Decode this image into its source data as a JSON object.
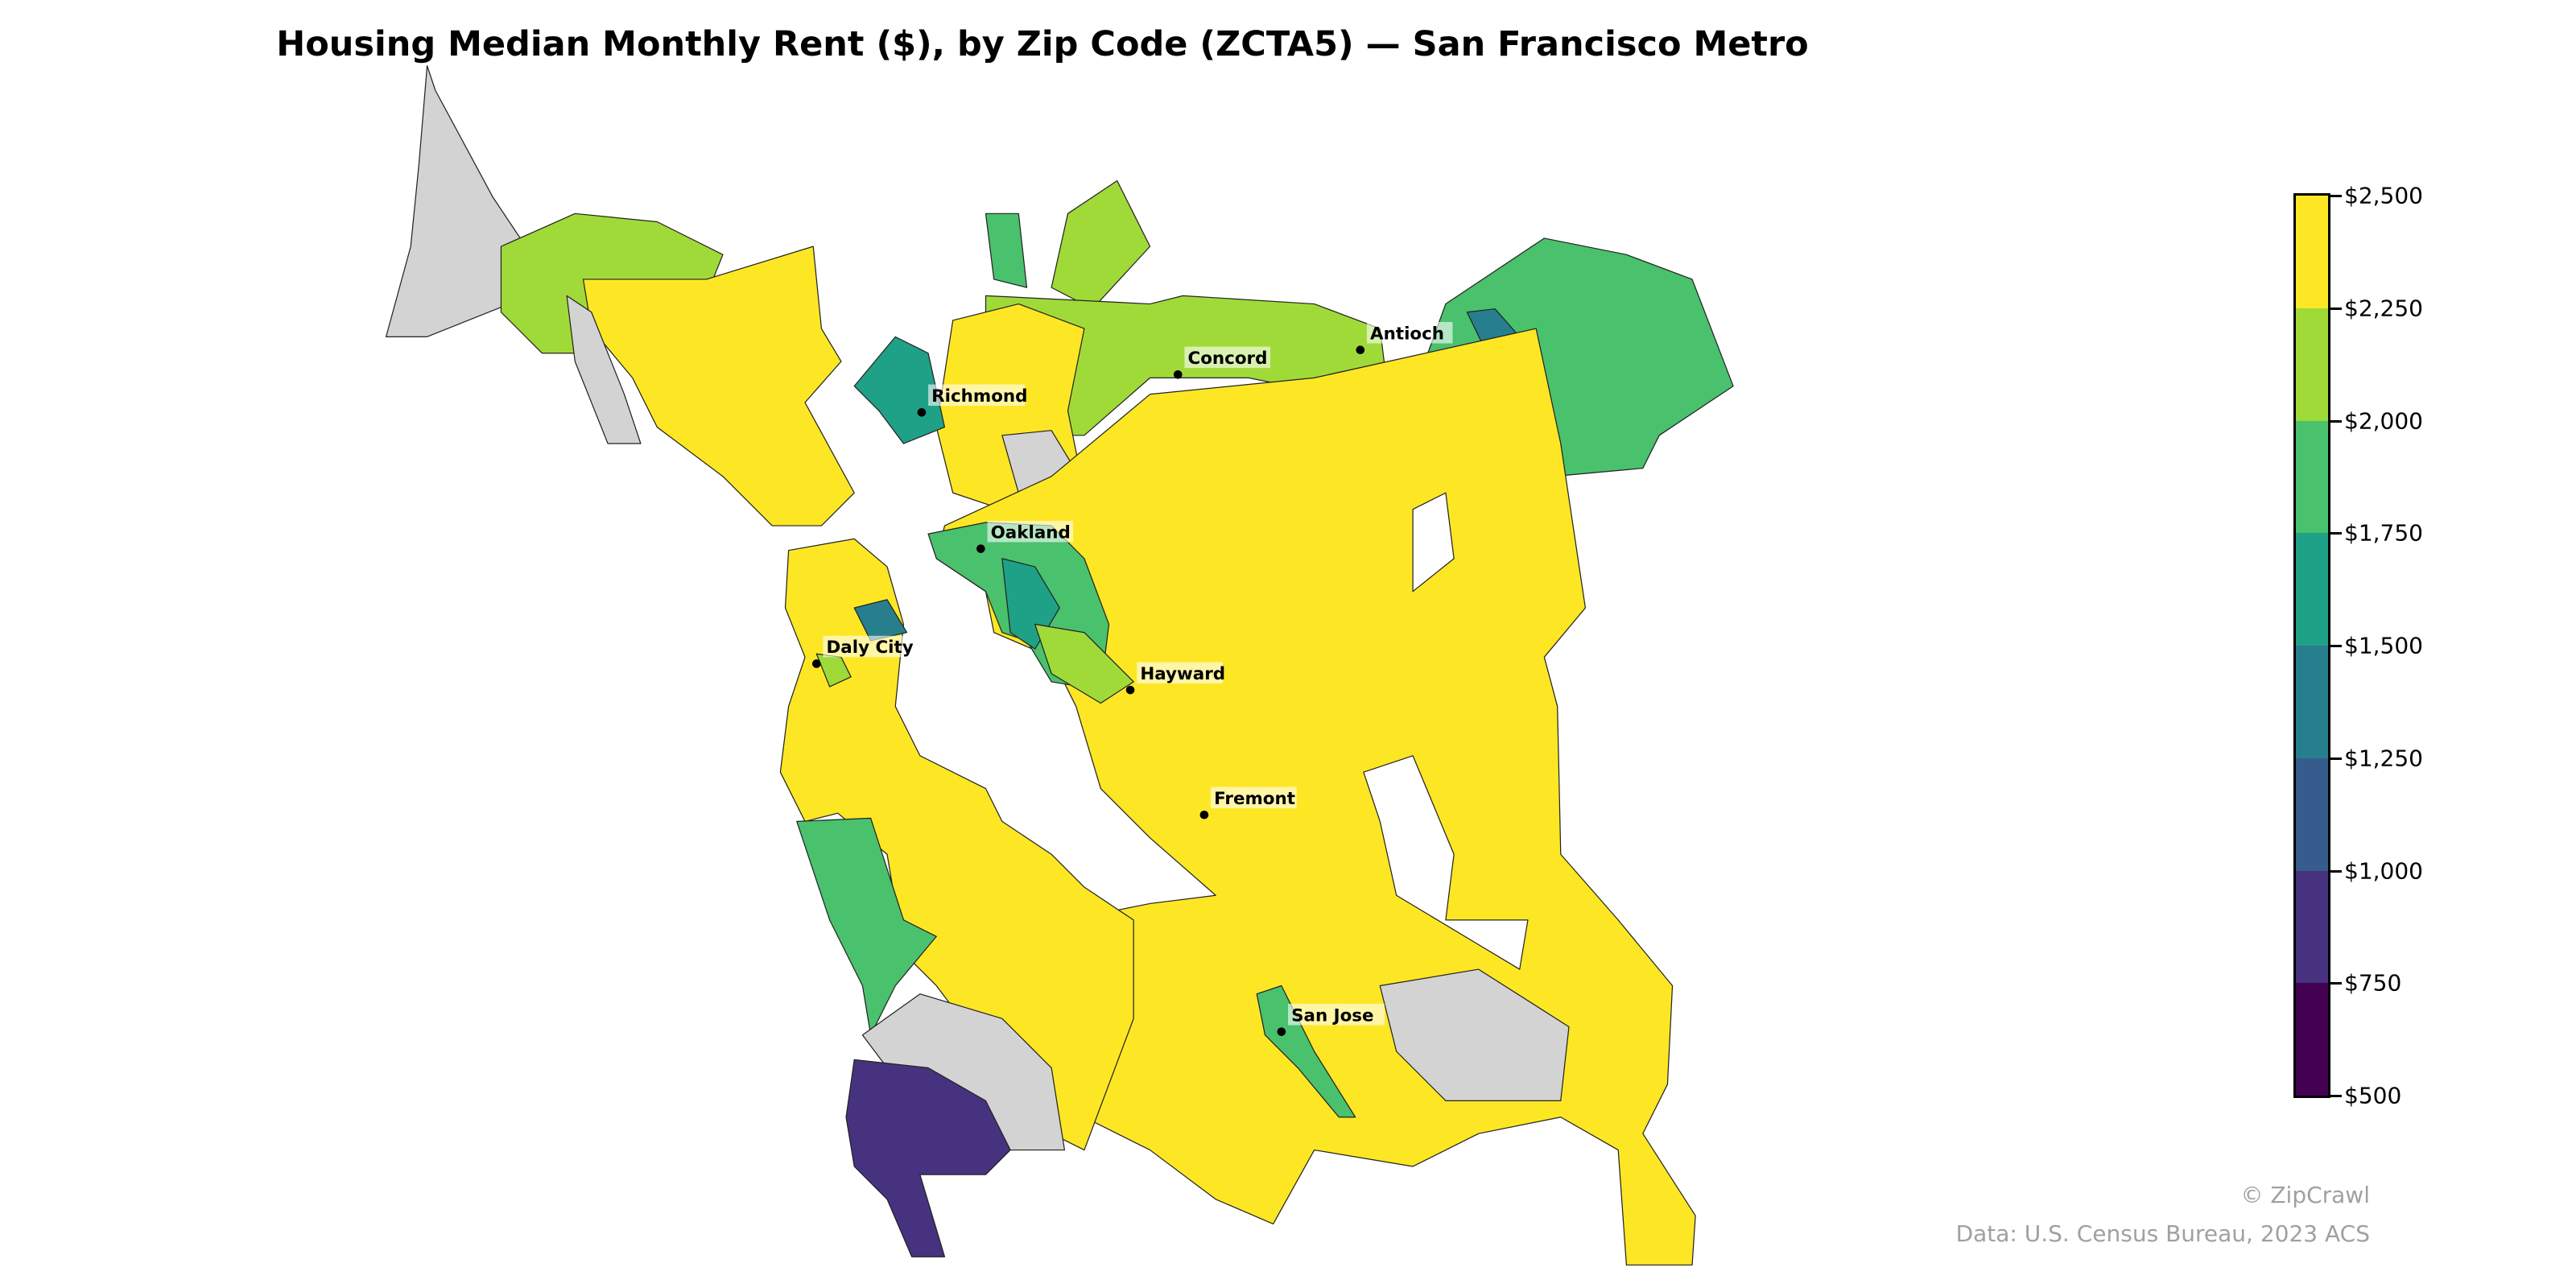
{
  "title": "Housing Median Monthly Rent ($), by Zip Code (ZCTA5) — San Francisco Metro",
  "chart_data": {
    "type": "choropleth",
    "title": "Housing Median Monthly Rent ($), by Zip Code (ZCTA5) — San Francisco Metro",
    "colorbar": {
      "range": [
        500,
        2500
      ],
      "ticks": [
        "$500",
        "$750",
        "$1,000",
        "$1,250",
        "$1,500",
        "$1,750",
        "$2,000",
        "$2,250",
        "$2,500"
      ],
      "bin_colors": [
        "#440154",
        "#46327e",
        "#365c8d",
        "#277f8e",
        "#1fa187",
        "#4ac16d",
        "#a0da39",
        "#fde725"
      ],
      "no_data_color": "#d3d3d3"
    },
    "cities": [
      {
        "name": "Richmond"
      },
      {
        "name": "Oakland"
      },
      {
        "name": "Daly City"
      },
      {
        "name": "Hayward"
      },
      {
        "name": "Fremont"
      },
      {
        "name": "San Jose"
      },
      {
        "name": "Concord"
      },
      {
        "name": "Antioch"
      }
    ]
  },
  "credits": {
    "brand": "© ZipCrawl",
    "source": "Data: U.S. Census Bureau, 2023 ACS"
  }
}
